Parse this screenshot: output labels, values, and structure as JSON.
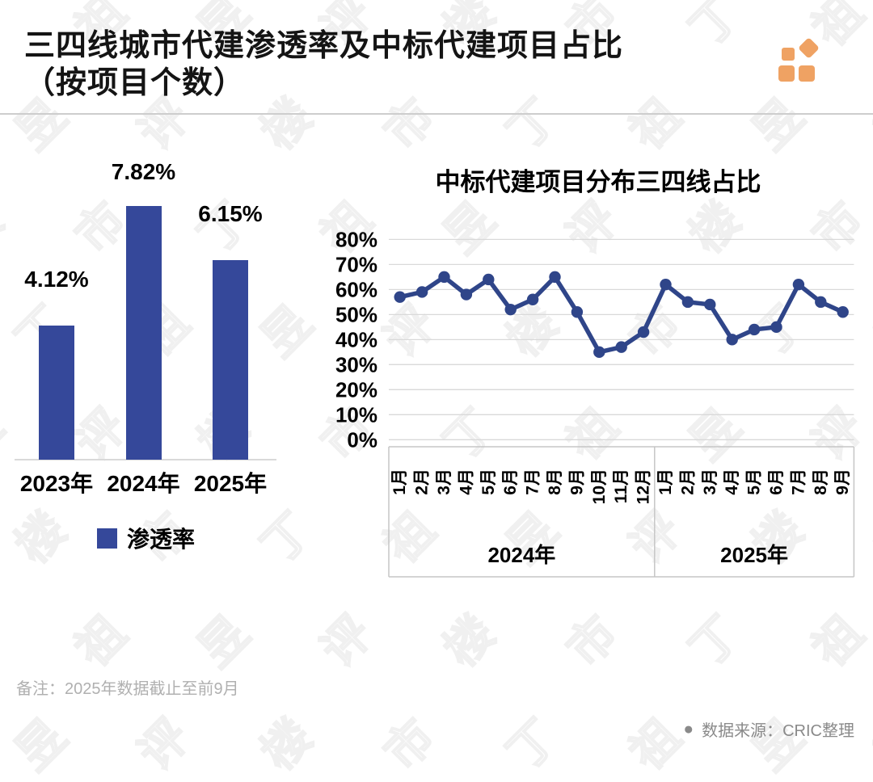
{
  "header": {
    "title_line1": "三四线城市代建渗透率及中标代建项目占比",
    "title_line2": "（按项目个数）"
  },
  "chart_data": [
    {
      "type": "bar",
      "categories": [
        "2023年",
        "2024年",
        "2025年"
      ],
      "values": [
        4.12,
        7.82,
        6.15
      ],
      "value_labels": [
        "4.12%",
        "7.82%",
        "6.15%"
      ],
      "series_name": "渗透率",
      "ylim": [
        0,
        8.5
      ],
      "bar_color": "#35489A"
    },
    {
      "type": "line",
      "title": "中标代建项目分布三四线占比",
      "groups": [
        {
          "label": "2024年",
          "months": [
            "1月",
            "2月",
            "3月",
            "4月",
            "5月",
            "6月",
            "7月",
            "8月",
            "9月",
            "10月",
            "11月",
            "12月"
          ]
        },
        {
          "label": "2025年",
          "months": [
            "1月",
            "2月",
            "3月",
            "4月",
            "5月",
            "6月",
            "7月",
            "8月",
            "9月"
          ]
        }
      ],
      "values": [
        57,
        59,
        65,
        58,
        64,
        52,
        56,
        65,
        51,
        35,
        37,
        43,
        62,
        55,
        54,
        40,
        44,
        45,
        62,
        55,
        51
      ],
      "unit": "%",
      "yticks": [
        "0%",
        "10%",
        "20%",
        "30%",
        "40%",
        "50%",
        "60%",
        "70%",
        "80%"
      ],
      "ylim": [
        0,
        80
      ],
      "grid": true,
      "line_color": "#2F4589"
    }
  ],
  "footer": {
    "note": "备注：2025年数据截止至前9月",
    "bullet": "●",
    "source": "数据来源：CRIC整理"
  },
  "watermark": {
    "characters": [
      "丁",
      "祖",
      "昱",
      "评",
      "楼",
      "市"
    ]
  },
  "colors": {
    "primary_blue": "#35489A",
    "line_blue": "#2F4589",
    "logo_orange": "#EFA263",
    "grid_gray": "#D9D9D9",
    "frame_gray": "#C6C6C6",
    "note_gray": "#B0B0B0",
    "source_gray": "#8A8A8A"
  }
}
